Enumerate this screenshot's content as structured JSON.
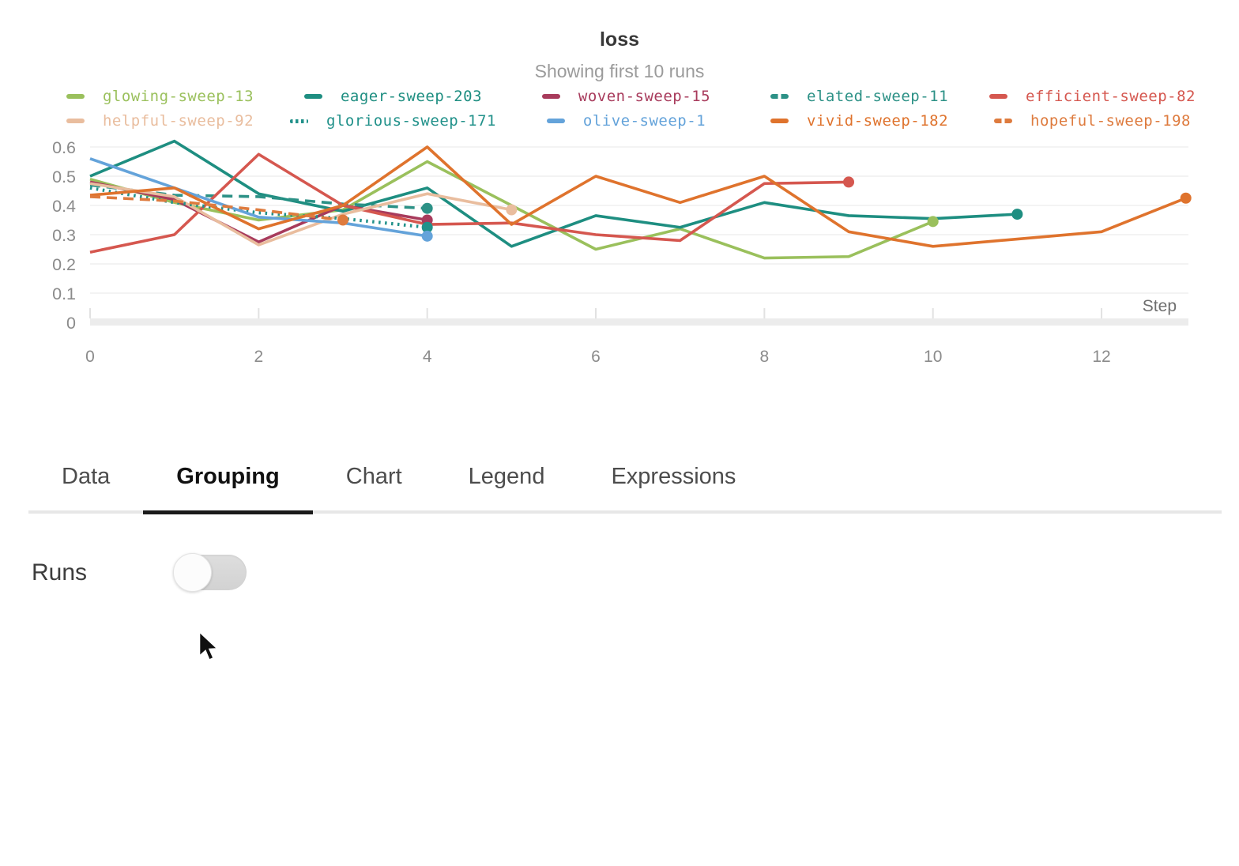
{
  "chart_data": {
    "type": "line",
    "title": "loss",
    "subtitle": "Showing first 10 runs",
    "xlabel": "Step",
    "xlim": [
      0,
      13.1
    ],
    "ylim": [
      0,
      0.65
    ],
    "x_ticks": [
      0,
      2,
      4,
      6,
      8,
      10,
      12
    ],
    "y_ticks": [
      0,
      0.1,
      0.2,
      0.3,
      0.4,
      0.5,
      0.6
    ],
    "grid": true,
    "legend_position": "top",
    "end_markers": true,
    "x_start": 0,
    "x_step": 1,
    "series": [
      {
        "name": "glowing-sweep-13",
        "color": "#9ac05c",
        "style": "solid",
        "values": [
          0.49,
          0.41,
          0.35,
          0.385,
          0.55,
          0.4,
          0.25,
          0.32,
          0.22,
          0.225,
          0.345
        ]
      },
      {
        "name": "eager-sweep-203",
        "color": "#1e8e81",
        "style": "solid",
        "values": [
          0.5,
          0.62,
          0.44,
          0.38,
          0.46,
          0.26,
          0.365,
          0.325,
          0.41,
          0.365,
          0.355,
          0.37
        ]
      },
      {
        "name": "woven-sweep-15",
        "color": "#a83b5c",
        "style": "solid",
        "values": [
          0.48,
          0.42,
          0.275,
          0.4,
          0.35
        ]
      },
      {
        "name": "elated-sweep-11",
        "color": "#2c9186",
        "style": "dashed",
        "values": [
          0.47,
          0.435,
          0.43,
          0.405,
          0.39
        ]
      },
      {
        "name": "efficient-sweep-82",
        "color": "#d5574f",
        "style": "solid",
        "values": [
          0.24,
          0.3,
          0.575,
          0.4,
          0.335,
          0.34,
          0.3,
          0.28,
          0.475,
          0.48
        ]
      },
      {
        "name": "helpful-sweep-92",
        "color": "#e9bd9e",
        "style": "solid",
        "values": [
          0.475,
          0.43,
          0.265,
          0.37,
          0.44,
          0.385
        ]
      },
      {
        "name": "glorious-sweep-171",
        "color": "#21918a",
        "style": "dotted",
        "values": [
          0.46,
          0.41,
          0.375,
          0.355,
          0.325
        ]
      },
      {
        "name": "olive-sweep-1",
        "color": "#64a3da",
        "style": "solid",
        "values": [
          0.56,
          0.46,
          0.36,
          0.34,
          0.295
        ]
      },
      {
        "name": "vivid-sweep-182",
        "color": "#df732d",
        "style": "solid",
        "values": [
          0.435,
          0.46,
          0.32,
          0.4,
          0.6,
          0.335,
          0.5,
          0.41,
          0.5,
          0.31,
          0.26,
          0.285,
          0.31,
          0.425
        ]
      },
      {
        "name": "hopeful-sweep-198",
        "color": "#de7b3e",
        "style": "dashed",
        "values": [
          0.43,
          0.415,
          0.385,
          0.35
        ]
      }
    ],
    "axis_colors": {
      "tick_label": "#8b8b8b",
      "grid": "#efefef",
      "baseline": "#ececec",
      "xlabel": "#6f6f6f"
    }
  },
  "tabs": {
    "items": [
      {
        "label": "Data"
      },
      {
        "label": "Grouping"
      },
      {
        "label": "Chart"
      },
      {
        "label": "Legend"
      },
      {
        "label": "Expressions"
      }
    ],
    "active": "Grouping"
  },
  "grouping": {
    "runs_label": "Runs",
    "runs_toggle_state": "off"
  }
}
